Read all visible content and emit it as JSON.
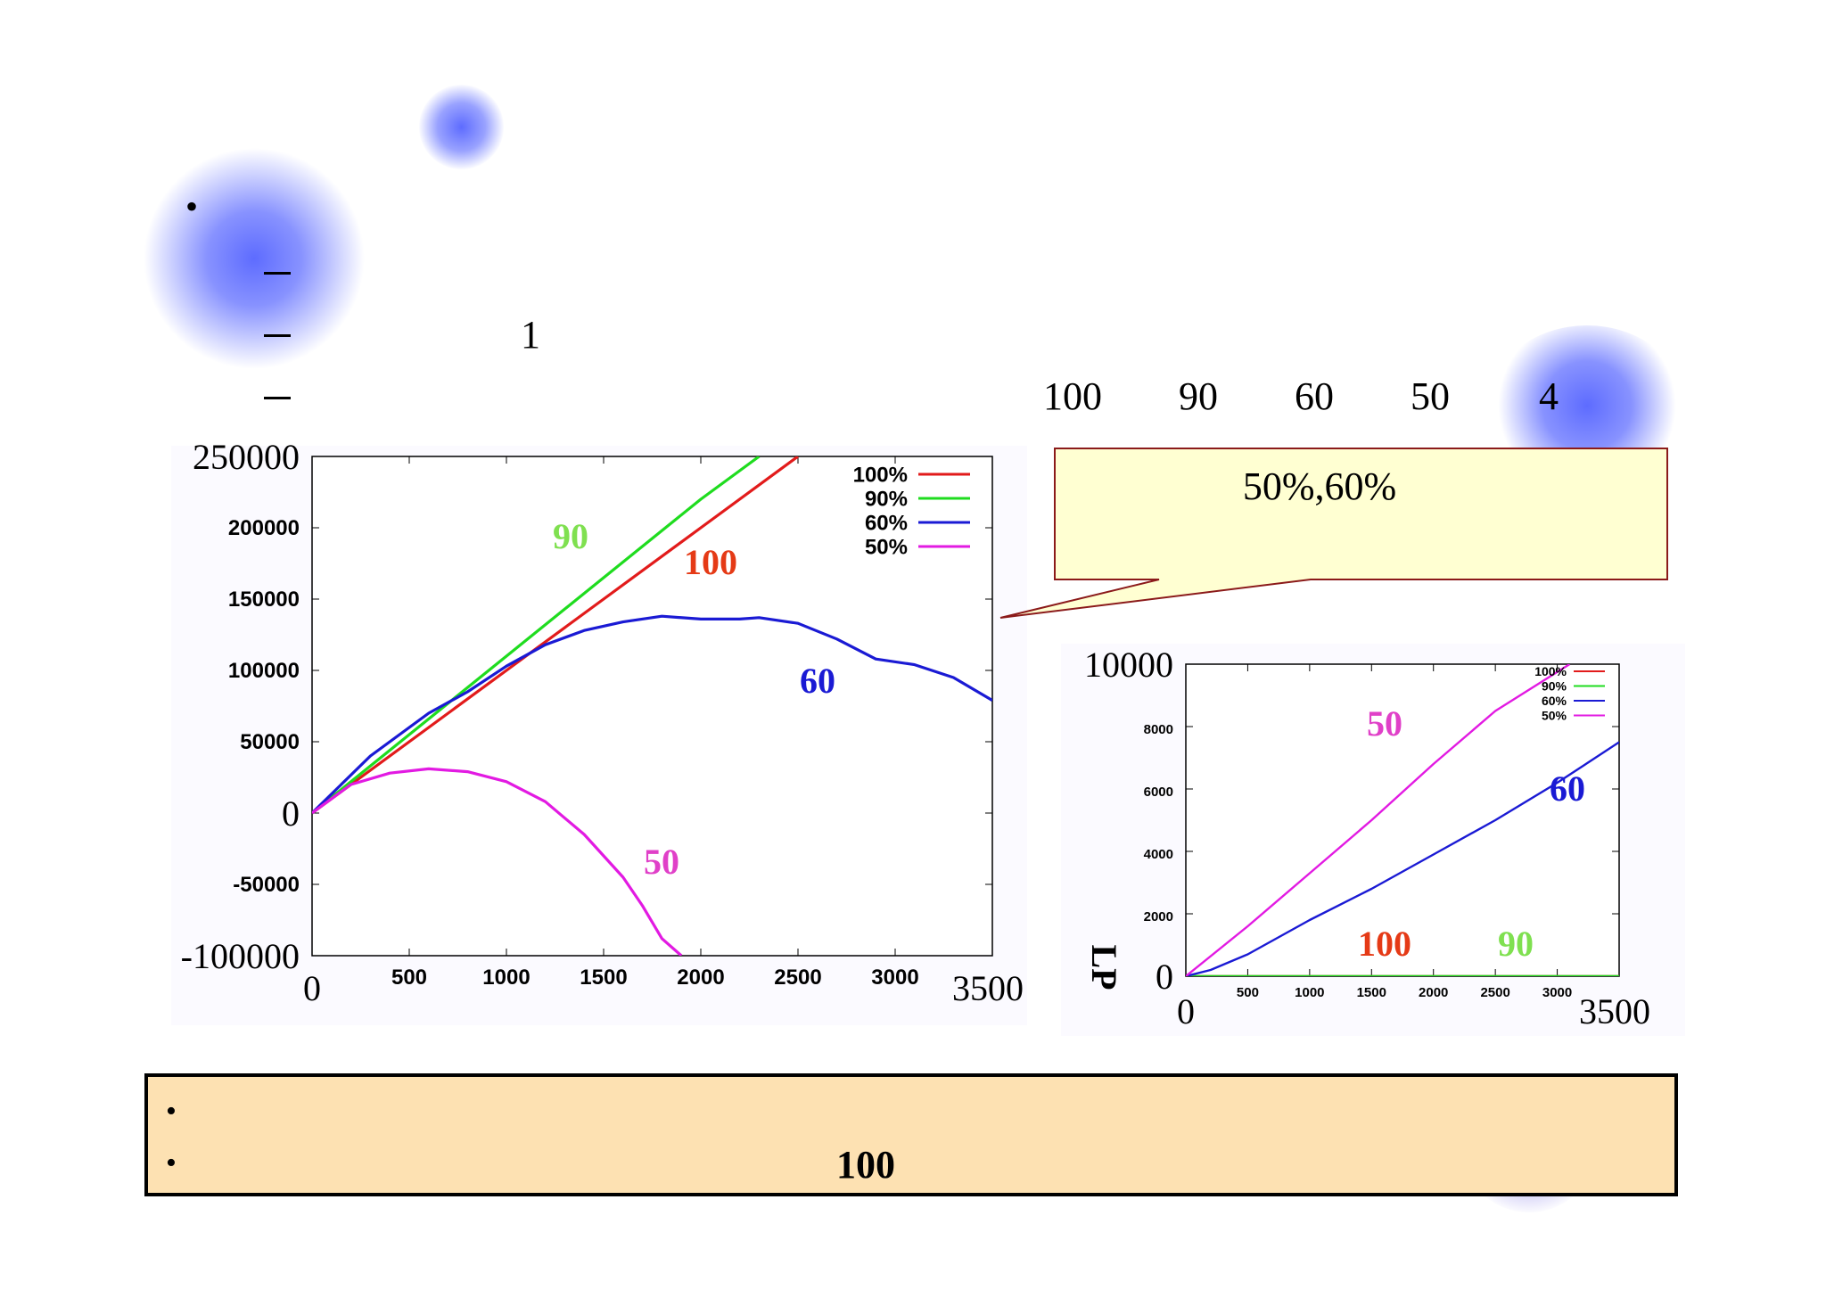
{
  "slide": {
    "dash_line_number": "1",
    "ratio_values": [
      "100",
      "90",
      "60",
      "50",
      "4"
    ]
  },
  "callout": {
    "text": "50%,60%"
  },
  "bottom_note": {
    "number": "100"
  },
  "chart_data": [
    {
      "type": "line",
      "title": "",
      "xlabel": "",
      "ylabel": "",
      "xlim": [
        0,
        3500
      ],
      "ylim": [
        -100000,
        250000
      ],
      "x_ticks": [
        0,
        500,
        1000,
        1500,
        2000,
        2500,
        3000,
        3500
      ],
      "x_tick_labels": [
        "0",
        "500",
        "1000",
        "1500",
        "2000",
        "2500",
        "3000",
        "3500"
      ],
      "y_ticks": [
        250000,
        200000,
        150000,
        100000,
        50000,
        0,
        -50000,
        -100000
      ],
      "y_tick_labels": [
        "250000",
        "200000",
        "150000",
        "100000",
        "50000",
        "0",
        "-50000",
        "-100000"
      ],
      "legend": [
        "100%",
        "90%",
        "60%",
        "50%"
      ],
      "legend_position": "top-right",
      "series": [
        {
          "name": "100%",
          "color": "#e21b1b",
          "x": [
            0,
            500,
            1000,
            1500,
            2000,
            2500
          ],
          "y": [
            0,
            50000,
            100000,
            150000,
            200000,
            250000
          ]
        },
        {
          "name": "90%",
          "color": "#1fdc1f",
          "x": [
            0,
            500,
            1000,
            1500,
            2000,
            2300
          ],
          "y": [
            0,
            55000,
            110000,
            165000,
            220000,
            250000
          ]
        },
        {
          "name": "60%",
          "color": "#1a1ad4",
          "x": [
            0,
            300,
            600,
            800,
            1000,
            1200,
            1400,
            1600,
            1800,
            2000,
            2200,
            2300,
            2500,
            2700,
            2900,
            3100,
            3300,
            3500
          ],
          "y": [
            0,
            40000,
            70000,
            85000,
            103000,
            118000,
            128000,
            134000,
            138000,
            136000,
            136000,
            137000,
            133000,
            122000,
            108000,
            104000,
            95000,
            79000
          ]
        },
        {
          "name": "50%",
          "color": "#e21ae2",
          "x": [
            0,
            200,
            400,
            600,
            800,
            1000,
            1200,
            1400,
            1600,
            1700,
            1800,
            1900
          ],
          "y": [
            0,
            20000,
            28000,
            31000,
            29000,
            22000,
            8000,
            -15000,
            -45000,
            -65000,
            -88000,
            -100000
          ]
        }
      ],
      "annotations": [
        {
          "text": "90",
          "color": "#7fe050"
        },
        {
          "text": "100",
          "color": "#e53a16"
        },
        {
          "text": "60",
          "color": "#1a1ad4"
        },
        {
          "text": "50",
          "color": "#e040c8"
        }
      ]
    },
    {
      "type": "line",
      "title": "",
      "xlabel": "",
      "ylabel": "LP",
      "xlim": [
        0,
        3500
      ],
      "ylim": [
        0,
        10000
      ],
      "x_ticks": [
        0,
        500,
        1000,
        1500,
        2000,
        2500,
        3000,
        3500
      ],
      "x_tick_labels": [
        "0",
        "500",
        "1000",
        "1500",
        "2000",
        "2500",
        "3000",
        "3500"
      ],
      "y_ticks": [
        10000,
        8000,
        6000,
        4000,
        2000,
        0
      ],
      "y_tick_labels": [
        "10000",
        "8000",
        "6000",
        "4000",
        "2000",
        "0"
      ],
      "legend": [
        "100%",
        "90%",
        "60%",
        "50%"
      ],
      "legend_position": "top-right",
      "series": [
        {
          "name": "100%",
          "color": "#e21b1b",
          "x": [
            0,
            3500
          ],
          "y": [
            0,
            0
          ]
        },
        {
          "name": "90%",
          "color": "#1fdc1f",
          "x": [
            0,
            3500
          ],
          "y": [
            0,
            0
          ]
        },
        {
          "name": "60%",
          "color": "#1a1ad4",
          "x": [
            0,
            200,
            500,
            1000,
            1500,
            2000,
            2500,
            3000,
            3500
          ],
          "y": [
            0,
            200,
            700,
            1800,
            2800,
            3900,
            5000,
            6200,
            7500
          ]
        },
        {
          "name": "50%",
          "color": "#e21ae2",
          "x": [
            0,
            500,
            1000,
            1500,
            2000,
            2500,
            3100
          ],
          "y": [
            0,
            1600,
            3300,
            5000,
            6800,
            8500,
            10000
          ]
        }
      ],
      "annotations": [
        {
          "text": "50",
          "color": "#e040c8"
        },
        {
          "text": "60",
          "color": "#1a1ad4"
        },
        {
          "text": "100",
          "color": "#e53a16"
        },
        {
          "text": "90",
          "color": "#7fe050"
        }
      ]
    }
  ]
}
